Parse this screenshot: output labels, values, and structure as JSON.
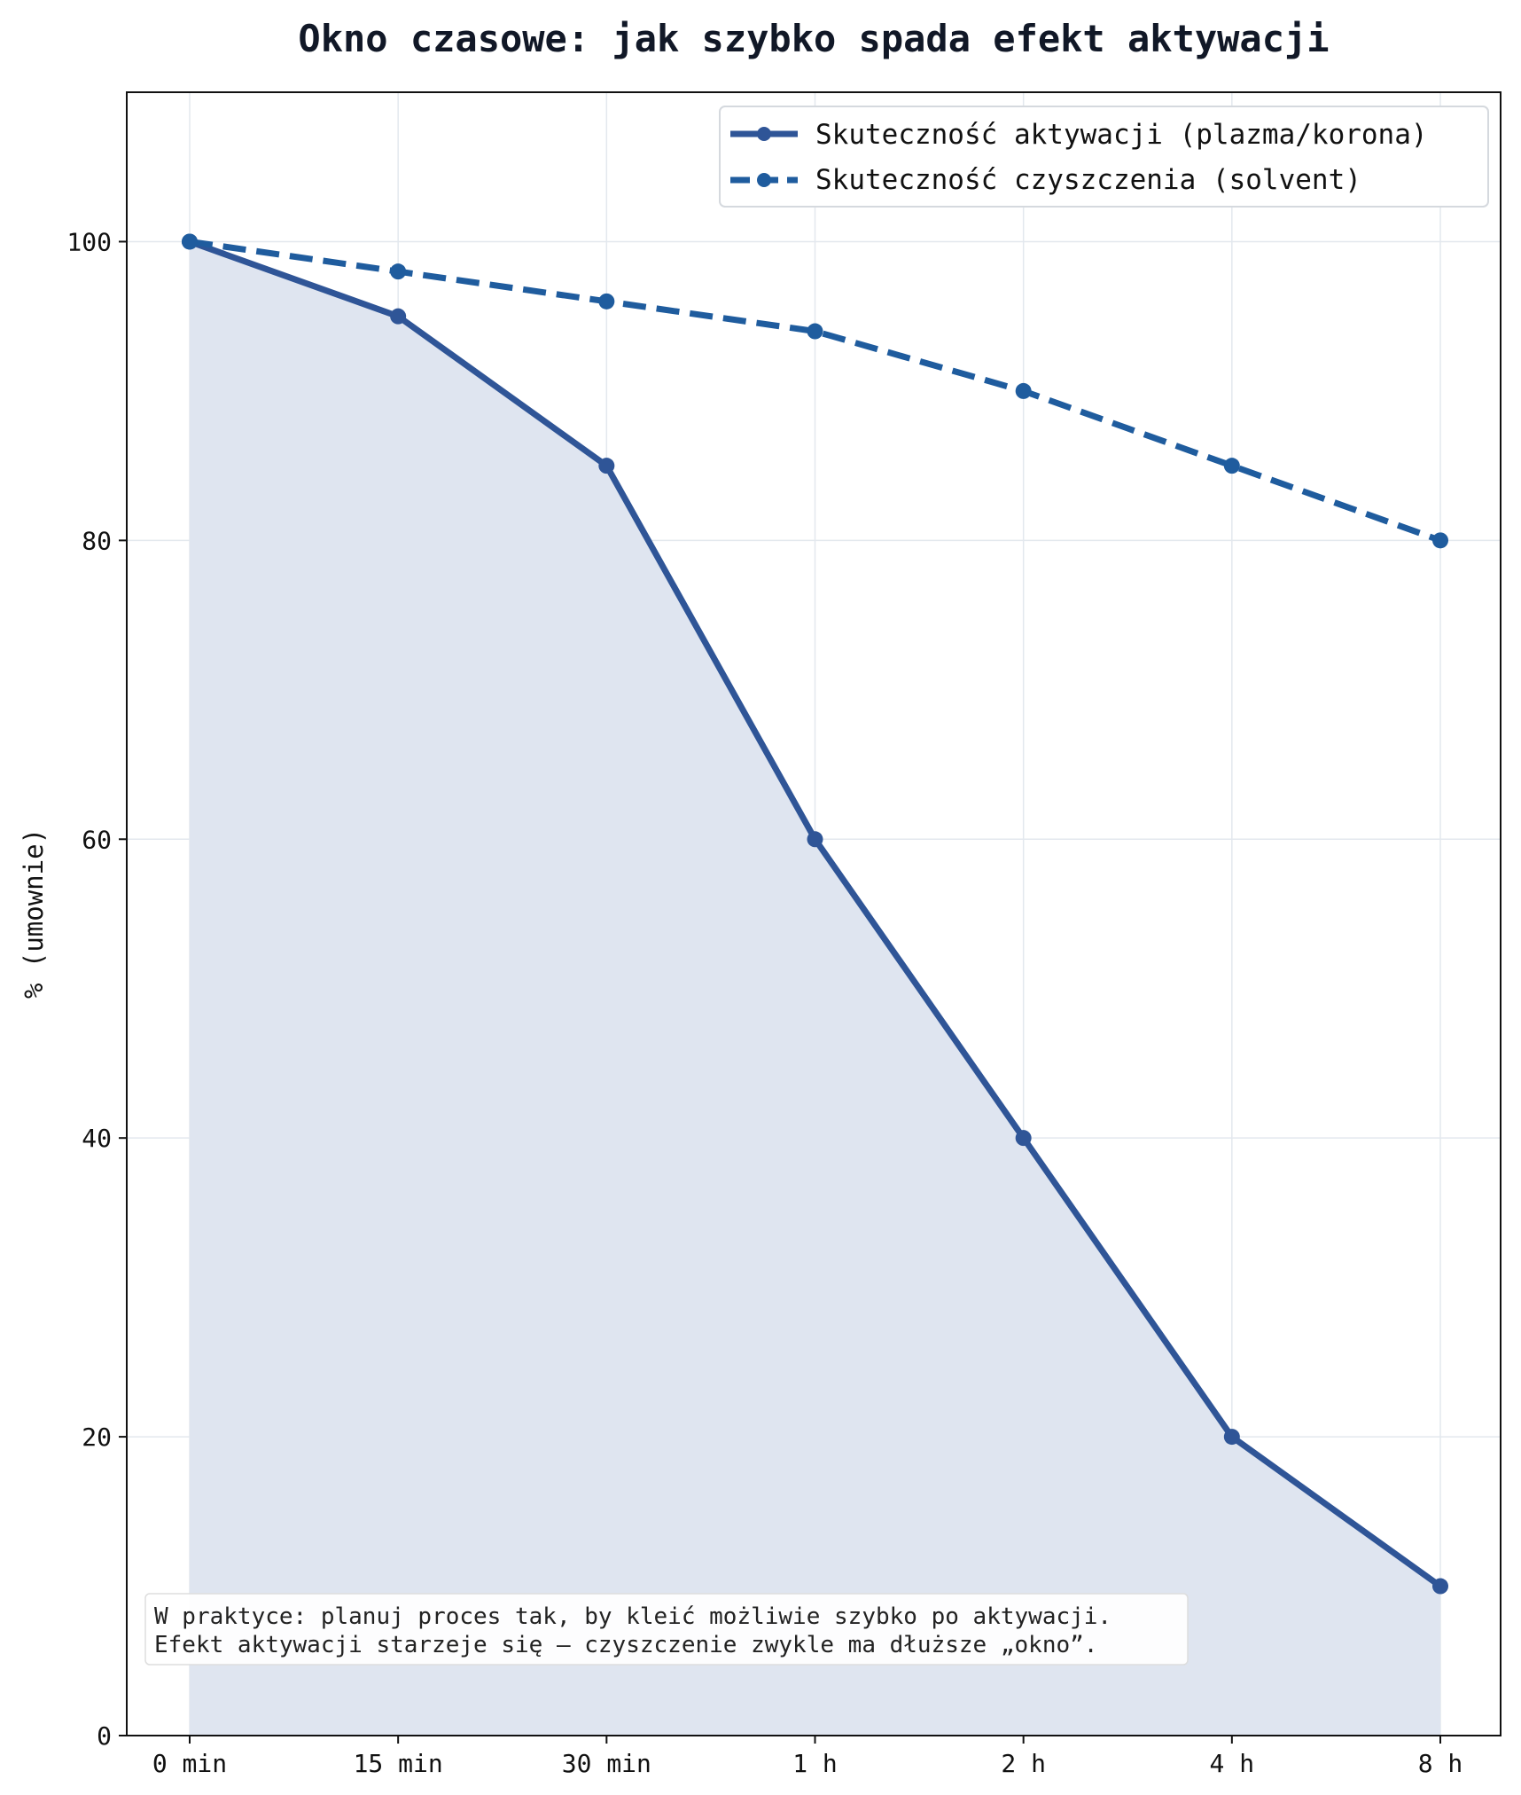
{
  "chart_data": {
    "type": "line",
    "title": "Okno czasowe: jak szybko spada efekt aktywacji",
    "xlabel": "",
    "ylabel": "% (umownie)",
    "categories": [
      "0 min",
      "15 min",
      "30 min",
      "1 h",
      "2 h",
      "4 h",
      "8 h"
    ],
    "ylim": [
      0,
      110
    ],
    "yticks": [
      0,
      20,
      40,
      60,
      80,
      100
    ],
    "grid": true,
    "legend_position": "top-right",
    "series": [
      {
        "name": "Skuteczność aktywacji (plazma/korona)",
        "values": [
          100,
          95,
          85,
          60,
          40,
          20,
          10
        ],
        "style": "solid",
        "filled": true,
        "color": "#2f5597"
      },
      {
        "name": "Skuteczność czyszczenia (solvent)",
        "values": [
          100,
          98,
          96,
          94,
          90,
          85,
          80
        ],
        "style": "dashed",
        "filled": false,
        "color": "#1f5c9e"
      }
    ],
    "annotation": {
      "lines": [
        "W praktyce: planuj proces tak, by kleić możliwie szybko po aktywacji.",
        "Efekt aktywacji starzeje się — czyszczenie zwykle ma dłuższe „okno”."
      ]
    },
    "colors": {
      "fill": "#dfe5f0",
      "grid": "#e3e8ee",
      "axis": "#111111"
    }
  }
}
